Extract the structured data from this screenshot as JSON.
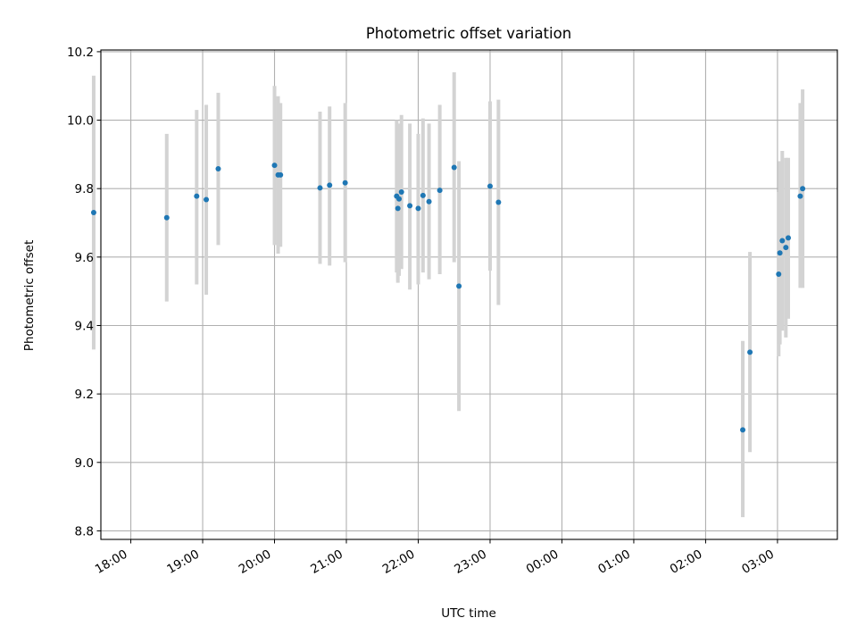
{
  "chart_data": {
    "type": "scatter",
    "title": "Photometric offset variation",
    "xlabel": "UTC time",
    "ylabel": "Photometric offset",
    "x_axis": {
      "kind": "time",
      "range": [
        "17:35",
        "03:50"
      ]
    },
    "ylim": [
      8.775,
      10.205
    ],
    "grid": true,
    "x_ticks": [
      "18:00",
      "19:00",
      "20:00",
      "21:00",
      "22:00",
      "23:00",
      "00:00",
      "01:00",
      "02:00",
      "03:00"
    ],
    "y_ticks": [
      "8.8",
      "9.0",
      "9.2",
      "9.4",
      "9.6",
      "9.8",
      "10.0",
      "10.2"
    ],
    "colors": {
      "points": "#1f77b4",
      "error_bars": "#d3d3d3",
      "grid": "#b0b0b0"
    },
    "points": [
      {
        "t": "17:29",
        "y": 9.73,
        "err_low": 9.33,
        "err_high": 10.13
      },
      {
        "t": "18:30",
        "y": 9.715,
        "err_low": 9.47,
        "err_high": 9.96
      },
      {
        "t": "18:55",
        "y": 9.778,
        "err_low": 9.52,
        "err_high": 10.03
      },
      {
        "t": "19:03",
        "y": 9.768,
        "err_low": 9.49,
        "err_high": 10.045
      },
      {
        "t": "19:13",
        "y": 9.858,
        "err_low": 9.635,
        "err_high": 10.08
      },
      {
        "t": "20:00",
        "y": 9.868,
        "err_low": 9.635,
        "err_high": 10.1
      },
      {
        "t": "20:03",
        "y": 9.84,
        "err_low": 9.61,
        "err_high": 10.07
      },
      {
        "t": "20:05",
        "y": 9.84,
        "err_low": 9.63,
        "err_high": 10.05
      },
      {
        "t": "20:38",
        "y": 9.802,
        "err_low": 9.58,
        "err_high": 10.025
      },
      {
        "t": "20:46",
        "y": 9.81,
        "err_low": 9.575,
        "err_high": 10.04
      },
      {
        "t": "20:59",
        "y": 9.817,
        "err_low": 9.585,
        "err_high": 10.05
      },
      {
        "t": "21:42",
        "y": 9.778,
        "err_low": 9.555,
        "err_high": 10.0
      },
      {
        "t": "21:43",
        "y": 9.742,
        "err_low": 9.525,
        "err_high": 9.96
      },
      {
        "t": "21:44",
        "y": 9.77,
        "err_low": 9.545,
        "err_high": 9.99
      },
      {
        "t": "21:46",
        "y": 9.79,
        "err_low": 9.565,
        "err_high": 10.015
      },
      {
        "t": "21:53",
        "y": 9.75,
        "err_low": 9.505,
        "err_high": 9.99
      },
      {
        "t": "22:00",
        "y": 9.742,
        "err_low": 9.52,
        "err_high": 9.96
      },
      {
        "t": "22:04",
        "y": 9.78,
        "err_low": 9.555,
        "err_high": 10.005
      },
      {
        "t": "22:09",
        "y": 9.762,
        "err_low": 9.535,
        "err_high": 9.99
      },
      {
        "t": "22:18",
        "y": 9.795,
        "err_low": 9.55,
        "err_high": 10.045
      },
      {
        "t": "22:30",
        "y": 9.862,
        "err_low": 9.585,
        "err_high": 10.14
      },
      {
        "t": "22:34",
        "y": 9.515,
        "err_low": 9.15,
        "err_high": 9.88
      },
      {
        "t": "23:00",
        "y": 9.807,
        "err_low": 9.56,
        "err_high": 10.055
      },
      {
        "t": "23:07",
        "y": 9.76,
        "err_low": 9.46,
        "err_high": 10.06
      },
      {
        "t": "02:31",
        "y": 9.095,
        "err_low": 8.84,
        "err_high": 9.355
      },
      {
        "t": "02:37",
        "y": 9.322,
        "err_low": 9.03,
        "err_high": 9.615
      },
      {
        "t": "03:01",
        "y": 9.55,
        "err_low": 9.31,
        "err_high": 9.79
      },
      {
        "t": "03:02",
        "y": 9.612,
        "err_low": 9.345,
        "err_high": 9.88
      },
      {
        "t": "03:04",
        "y": 9.648,
        "err_low": 9.385,
        "err_high": 9.91
      },
      {
        "t": "03:07",
        "y": 9.628,
        "err_low": 9.365,
        "err_high": 9.89
      },
      {
        "t": "03:09",
        "y": 9.656,
        "err_low": 9.42,
        "err_high": 9.89
      },
      {
        "t": "03:19",
        "y": 9.778,
        "err_low": 9.51,
        "err_high": 10.05
      },
      {
        "t": "03:21",
        "y": 9.8,
        "err_low": 9.51,
        "err_high": 10.09
      }
    ]
  }
}
